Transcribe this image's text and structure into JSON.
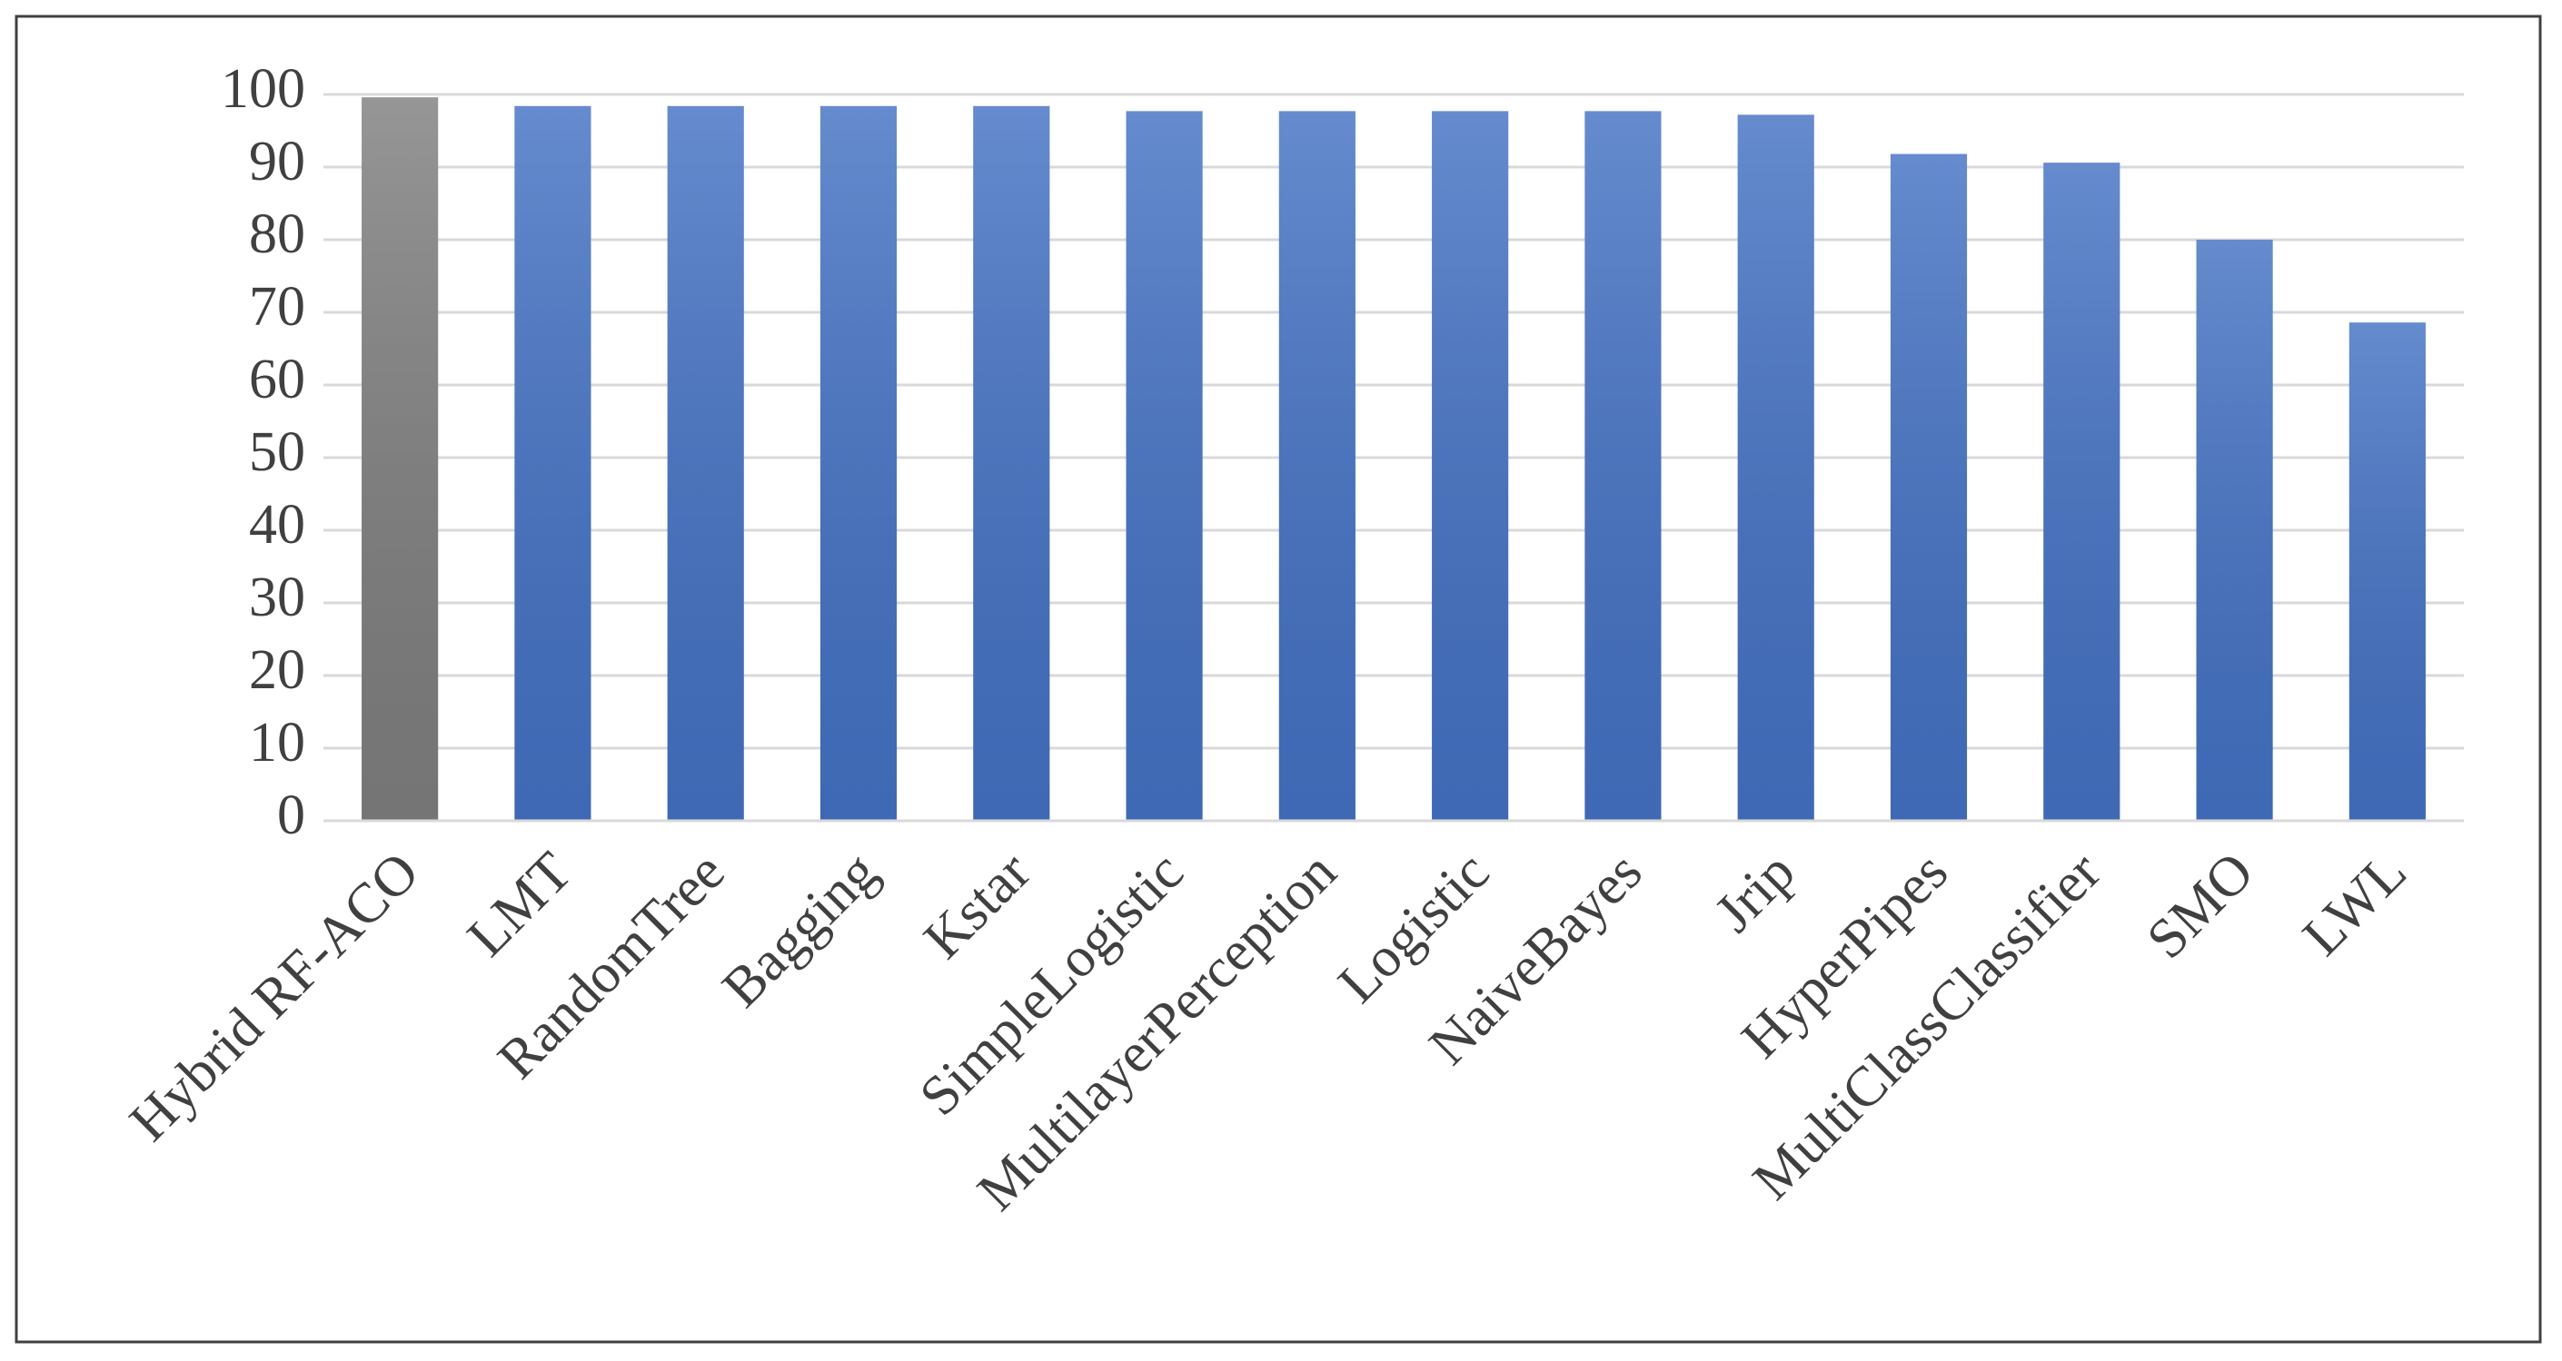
{
  "chart_data": {
    "type": "bar",
    "categories": [
      "Hybrid RF-ACO",
      "LMT",
      "RandomTree",
      "Bagging",
      "Kstar",
      "SimpleLogistic",
      "MultilayerPerception",
      "Logistic",
      "NaiveBayes",
      "Jrip",
      "HyperPipes",
      "MultiClassClassifier",
      "SMO",
      "LWL"
    ],
    "values": [
      99.6,
      98.4,
      98.4,
      98.4,
      98.4,
      97.7,
      97.7,
      97.7,
      97.7,
      97.2,
      91.8,
      90.6,
      80.0,
      68.6
    ],
    "colors": [
      "#7f7f7f",
      "#4472c4",
      "#4472c4",
      "#4472c4",
      "#4472c4",
      "#4472c4",
      "#4472c4",
      "#4472c4",
      "#4472c4",
      "#4472c4",
      "#4472c4",
      "#4472c4",
      "#4472c4",
      "#4472c4"
    ],
    "ylim": [
      0,
      100
    ],
    "yticks": [
      0,
      10,
      20,
      30,
      40,
      50,
      60,
      70,
      80,
      90,
      100
    ],
    "grid": true
  }
}
